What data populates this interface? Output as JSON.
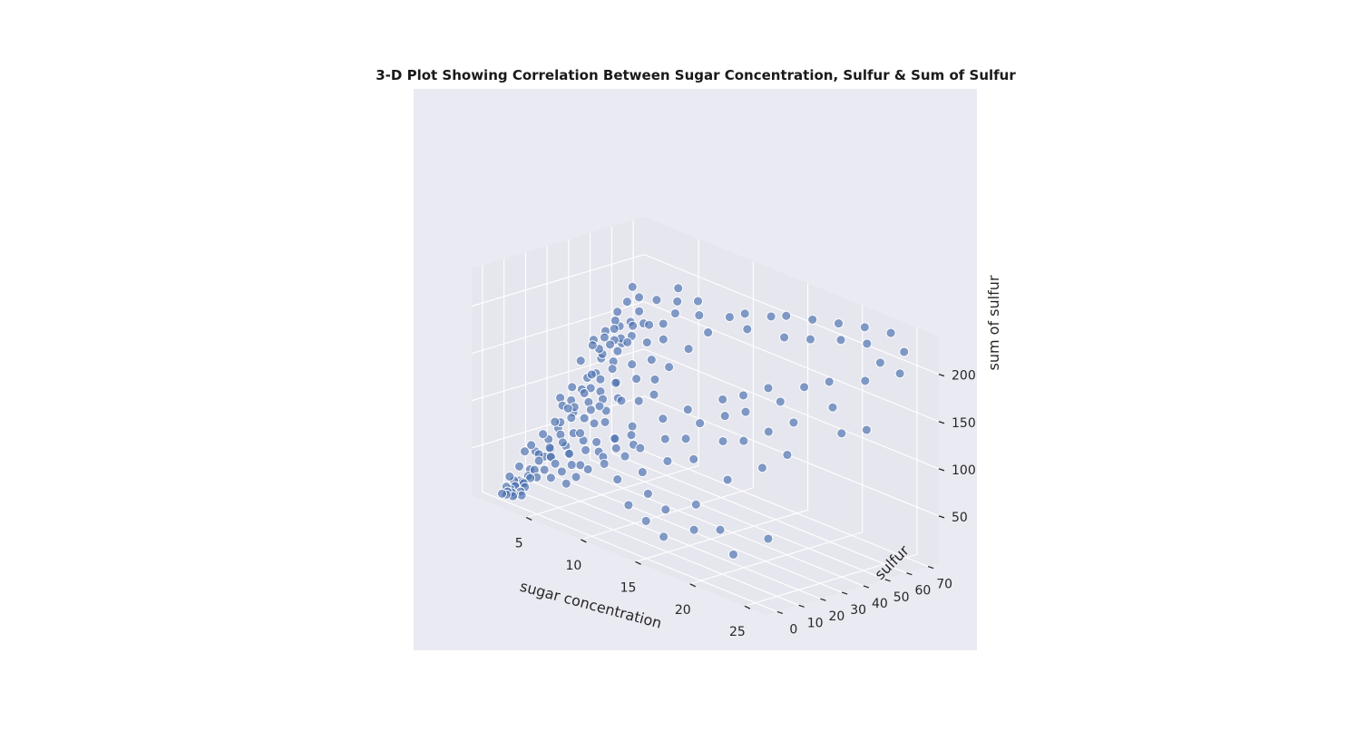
{
  "chart_data": {
    "type": "scatter",
    "projection": "3d",
    "title": "3-D Plot Showing Correlation Between Sugar Concentration, Sulfur & Sum of Sulfur",
    "xlabel": "sugar concentration",
    "ylabel": "sulfur",
    "zlabel": "sum of sulfur",
    "xticks": [
      "5",
      "10",
      "15",
      "20",
      "25"
    ],
    "yticks": [
      "0",
      "10",
      "20",
      "30",
      "40",
      "50",
      "60",
      "70"
    ],
    "zticks": [
      "50",
      "100",
      "150",
      "200"
    ],
    "xlim": [
      0,
      27
    ],
    "ylim": [
      -5,
      75
    ],
    "zlim": [
      0,
      240
    ],
    "grid": true,
    "colors": {
      "figure_bg": "#eaeaf2",
      "pane": "#e6e6ee",
      "grid": "#ffffff",
      "point": "#4c72b0"
    },
    "points": [
      [
        1.5,
        5,
        20
      ],
      [
        1.8,
        8,
        30
      ],
      [
        2,
        12,
        25
      ],
      [
        2.2,
        15,
        40
      ],
      [
        2.5,
        6,
        18
      ],
      [
        1.6,
        20,
        55
      ],
      [
        2,
        25,
        60
      ],
      [
        2.4,
        30,
        75
      ],
      [
        1.9,
        10,
        45
      ],
      [
        2.1,
        18,
        35
      ],
      [
        2.3,
        22,
        70
      ],
      [
        2.6,
        28,
        90
      ],
      [
        1.7,
        14,
        48
      ],
      [
        2.2,
        35,
        95
      ],
      [
        2.5,
        40,
        110
      ],
      [
        2,
        45,
        120
      ],
      [
        2.8,
        12,
        38
      ],
      [
        3,
        16,
        50
      ],
      [
        3.2,
        20,
        62
      ],
      [
        2.9,
        25,
        85
      ],
      [
        3.4,
        30,
        100
      ],
      [
        3.1,
        35,
        115
      ],
      [
        2.7,
        42,
        130
      ],
      [
        3.3,
        48,
        140
      ],
      [
        1.8,
        8,
        15
      ],
      [
        2,
        5,
        12
      ],
      [
        2.4,
        9,
        22
      ],
      [
        2.6,
        11,
        28
      ],
      [
        3,
        7,
        24
      ],
      [
        3.5,
        14,
        44
      ],
      [
        3.8,
        18,
        58
      ],
      [
        4,
        22,
        66
      ],
      [
        4.2,
        26,
        80
      ],
      [
        3.6,
        32,
        105
      ],
      [
        4.4,
        38,
        125
      ],
      [
        4.6,
        44,
        150
      ],
      [
        3.9,
        50,
        160
      ],
      [
        4.8,
        16,
        52
      ],
      [
        5,
        20,
        72
      ],
      [
        5.2,
        28,
        96
      ],
      [
        5.5,
        34,
        118
      ],
      [
        5.8,
        40,
        135
      ],
      [
        6,
        46,
        155
      ],
      [
        6.2,
        14,
        48
      ],
      [
        6.5,
        24,
        88
      ],
      [
        6.8,
        30,
        108
      ],
      [
        7,
        36,
        128
      ],
      [
        7.2,
        42,
        145
      ],
      [
        7.5,
        18,
        60
      ],
      [
        7.8,
        22,
        78
      ],
      [
        8,
        32,
        112
      ],
      [
        8.3,
        38,
        132
      ],
      [
        8.6,
        26,
        92
      ],
      [
        9,
        34,
        122
      ],
      [
        2.1,
        52,
        165
      ],
      [
        2.4,
        55,
        175
      ],
      [
        2.9,
        58,
        180
      ],
      [
        3.5,
        55,
        170
      ],
      [
        1.9,
        60,
        185
      ],
      [
        2.6,
        48,
        152
      ],
      [
        3.2,
        45,
        145
      ],
      [
        4.1,
        40,
        130
      ],
      [
        1.5,
        38,
        120
      ],
      [
        1.8,
        42,
        135
      ],
      [
        2.3,
        50,
        158
      ],
      [
        5.4,
        50,
        168
      ],
      [
        6.3,
        52,
        172
      ],
      [
        7.1,
        48,
        162
      ],
      [
        2,
        3,
        10
      ],
      [
        2.2,
        4,
        14
      ],
      [
        2.5,
        2,
        8
      ],
      [
        1.6,
        3,
        11
      ],
      [
        1.7,
        6,
        16
      ],
      [
        2.8,
        5,
        19
      ],
      [
        3.1,
        4,
        17
      ],
      [
        3.4,
        8,
        26
      ],
      [
        3.7,
        10,
        34
      ],
      [
        4.3,
        12,
        42
      ],
      [
        4.5,
        9,
        30
      ],
      [
        5.1,
        11,
        38
      ],
      [
        5.6,
        13,
        46
      ],
      [
        6.1,
        8,
        32
      ],
      [
        6.6,
        10,
        40
      ],
      [
        7.3,
        12,
        50
      ],
      [
        8.2,
        15,
        58
      ],
      [
        9.5,
        18,
        70
      ],
      [
        10,
        12,
        52
      ],
      [
        10.5,
        20,
        82
      ],
      [
        11,
        28,
        110
      ],
      [
        11.5,
        16,
        64
      ],
      [
        12,
        24,
        96
      ],
      [
        12.5,
        32,
        124
      ],
      [
        13,
        20,
        80
      ],
      [
        13.5,
        26,
        102
      ],
      [
        14,
        30,
        118
      ],
      [
        14.5,
        38,
        140
      ],
      [
        15,
        22,
        90
      ],
      [
        15.5,
        34,
        130
      ],
      [
        16,
        40,
        150
      ],
      [
        16.5,
        28,
        112
      ],
      [
        17,
        36,
        140
      ],
      [
        17.5,
        44,
        162
      ],
      [
        18,
        30,
        118
      ],
      [
        18.5,
        20,
        86
      ],
      [
        19,
        42,
        156
      ],
      [
        19.5,
        34,
        132
      ],
      [
        20,
        48,
        172
      ],
      [
        20.5,
        26,
        104
      ],
      [
        21,
        38,
        146
      ],
      [
        21.5,
        52,
        182
      ],
      [
        22,
        30,
        122
      ],
      [
        23,
        46,
        166
      ],
      [
        24,
        56,
        192
      ],
      [
        25,
        40,
        152
      ],
      [
        26,
        62,
        205
      ],
      [
        26.5,
        44,
        160
      ],
      [
        9.2,
        40,
        148
      ],
      [
        9.8,
        46,
        166
      ],
      [
        10.4,
        52,
        182
      ],
      [
        11.2,
        58,
        198
      ],
      [
        12.2,
        60,
        205
      ],
      [
        13.2,
        56,
        196
      ],
      [
        14.2,
        62,
        210
      ],
      [
        15.2,
        64,
        214
      ],
      [
        16.2,
        58,
        200
      ],
      [
        17.2,
        66,
        218
      ],
      [
        18.2,
        60,
        206
      ],
      [
        19.2,
        68,
        222
      ],
      [
        20.2,
        64,
        212
      ],
      [
        21.2,
        70,
        226
      ],
      [
        22.2,
        66,
        216
      ],
      [
        23.2,
        72,
        228
      ],
      [
        24.2,
        62,
        208
      ],
      [
        25.2,
        68,
        220
      ],
      [
        8.8,
        56,
        190
      ],
      [
        7.9,
        60,
        198
      ],
      [
        7,
        54,
        185
      ],
      [
        6.4,
        58,
        192
      ],
      [
        5.7,
        62,
        200
      ],
      [
        4.9,
        56,
        188
      ],
      [
        11.8,
        8,
        36
      ],
      [
        12.8,
        12,
        50
      ],
      [
        13.8,
        6,
        30
      ],
      [
        14.8,
        10,
        44
      ],
      [
        15.8,
        4,
        24
      ],
      [
        16.8,
        14,
        56
      ],
      [
        17.8,
        8,
        38
      ],
      [
        19.8,
        10,
        46
      ],
      [
        21.8,
        6,
        32
      ],
      [
        23.8,
        12,
        54
      ],
      [
        1.6,
        28,
        88
      ],
      [
        1.9,
        32,
        98
      ],
      [
        2.2,
        26,
        84
      ],
      [
        2.5,
        36,
        108
      ],
      [
        2.8,
        22,
        72
      ],
      [
        3.1,
        27,
        86
      ],
      [
        3.4,
        24,
        78
      ],
      [
        3.7,
        36,
        112
      ],
      [
        4,
        29,
        94
      ],
      [
        4.3,
        33,
        104
      ],
      [
        4.6,
        27,
        90
      ],
      [
        4.9,
        31,
        100
      ],
      [
        5.2,
        36,
        116
      ],
      [
        5.5,
        24,
        82
      ],
      [
        5.8,
        28,
        94
      ],
      [
        6.1,
        32,
        106
      ],
      [
        1.7,
        16,
        40
      ],
      [
        2.1,
        20,
        52
      ],
      [
        2.7,
        18,
        46
      ],
      [
        3.3,
        15,
        42
      ],
      [
        3.9,
        19,
        54
      ],
      [
        4.5,
        17,
        50
      ],
      [
        5.1,
        21,
        64
      ],
      [
        5.7,
        19,
        58
      ],
      [
        6.3,
        21,
        68
      ],
      [
        6.9,
        19,
        62
      ],
      [
        7.5,
        23,
        76
      ],
      [
        8.1,
        21,
        70
      ],
      [
        8.7,
        25,
        84
      ],
      [
        9.3,
        23,
        78
      ],
      [
        1.5,
        44,
        138
      ],
      [
        1.8,
        48,
        146
      ],
      [
        2.1,
        46,
        142
      ],
      [
        2.4,
        42,
        134
      ],
      [
        2.7,
        50,
        154
      ],
      [
        3,
        44,
        140
      ],
      [
        3.3,
        52,
        160
      ],
      [
        3.6,
        46,
        148
      ],
      [
        3.9,
        43,
        138
      ],
      [
        4.2,
        48,
        152
      ],
      [
        4.5,
        52,
        164
      ],
      [
        2,
        1,
        6
      ],
      [
        2.3,
        2,
        9
      ],
      [
        2.6,
        1,
        7
      ],
      [
        2.9,
        3,
        12
      ],
      [
        3.2,
        2,
        10
      ],
      [
        1.6,
        1,
        5
      ],
      [
        1.9,
        2,
        8
      ]
    ]
  }
}
